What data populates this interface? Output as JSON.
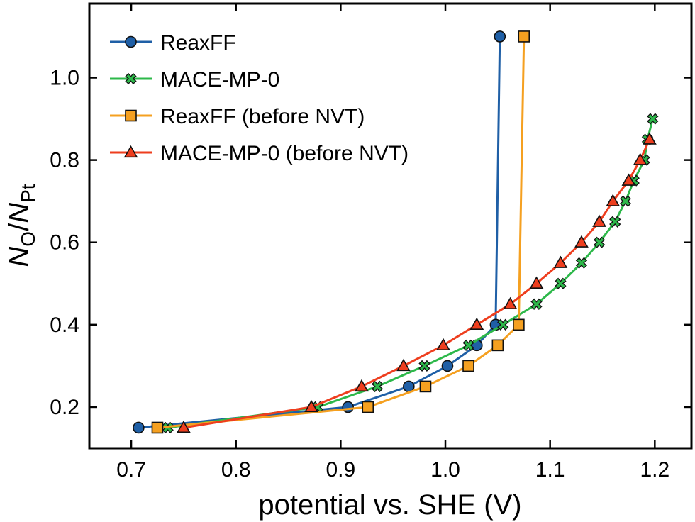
{
  "chart_data": {
    "type": "line",
    "title": "",
    "xlabel": "potential vs. SHE (V)",
    "ylabel": {
      "main": "N",
      "sub1": "O",
      "slash": "/",
      "main2": "N",
      "sub2": "Pt"
    },
    "xlim": [
      0.66,
      1.235
    ],
    "ylim": [
      0.1,
      1.18
    ],
    "xticks": [
      0.7,
      0.8,
      0.9,
      1.0,
      1.1,
      1.2
    ],
    "xtick_labels": [
      "0.7",
      "0.8",
      "0.9",
      "1.0",
      "1.1",
      "1.2"
    ],
    "yticks": [
      0.2,
      0.4,
      0.6,
      0.8,
      1.0
    ],
    "ytick_labels": [
      "0.2",
      "0.4",
      "0.6",
      "0.8",
      "1.0"
    ],
    "legend_position": "top-left",
    "grid": false,
    "series": [
      {
        "name": "ReaxFF",
        "color": "#1f5fa6",
        "marker": "circle",
        "points": [
          [
            0.707,
            0.15
          ],
          [
            0.907,
            0.2
          ],
          [
            0.965,
            0.25
          ],
          [
            1.002,
            0.3
          ],
          [
            1.03,
            0.35
          ],
          [
            1.048,
            0.4
          ],
          [
            1.052,
            1.1
          ]
        ]
      },
      {
        "name": "MACE-MP-0",
        "color": "#2db84a",
        "marker": "x",
        "points": [
          [
            0.735,
            0.15
          ],
          [
            0.878,
            0.2
          ],
          [
            0.935,
            0.25
          ],
          [
            0.98,
            0.3
          ],
          [
            1.022,
            0.35
          ],
          [
            1.055,
            0.4
          ],
          [
            1.087,
            0.45
          ],
          [
            1.11,
            0.5
          ],
          [
            1.13,
            0.55
          ],
          [
            1.147,
            0.6
          ],
          [
            1.162,
            0.65
          ],
          [
            1.172,
            0.7
          ],
          [
            1.18,
            0.75
          ],
          [
            1.19,
            0.8
          ],
          [
            1.193,
            0.85
          ],
          [
            1.198,
            0.9
          ]
        ]
      },
      {
        "name": "ReaxFF (before NVT)",
        "color": "#f5a020",
        "marker": "square",
        "points": [
          [
            0.725,
            0.15
          ],
          [
            0.926,
            0.2
          ],
          [
            0.981,
            0.25
          ],
          [
            1.022,
            0.3
          ],
          [
            1.05,
            0.35
          ],
          [
            1.07,
            0.4
          ],
          [
            1.075,
            1.1
          ]
        ]
      },
      {
        "name": "MACE-MP-0 (before NVT)",
        "color": "#ee3e1e",
        "marker": "triangle",
        "points": [
          [
            0.75,
            0.15
          ],
          [
            0.872,
            0.2
          ],
          [
            0.92,
            0.25
          ],
          [
            0.96,
            0.3
          ],
          [
            0.998,
            0.35
          ],
          [
            1.03,
            0.4
          ],
          [
            1.062,
            0.45
          ],
          [
            1.087,
            0.5
          ],
          [
            1.11,
            0.55
          ],
          [
            1.13,
            0.6
          ],
          [
            1.147,
            0.65
          ],
          [
            1.16,
            0.7
          ],
          [
            1.175,
            0.75
          ],
          [
            1.186,
            0.8
          ],
          [
            1.195,
            0.85
          ]
        ]
      }
    ]
  }
}
